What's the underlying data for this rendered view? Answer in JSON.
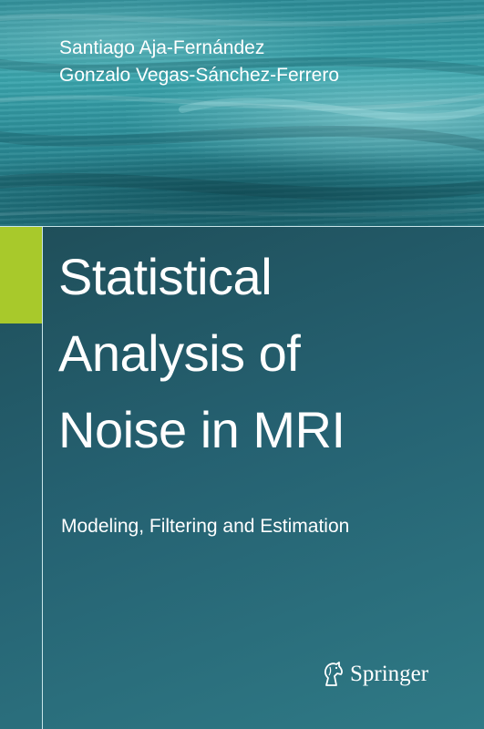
{
  "authors": [
    "Santiago Aja-Fernández",
    "Gonzalo Vegas-Sánchez-Ferrero"
  ],
  "title_lines": [
    "Statistical",
    "Analysis of",
    "Noise in MRI"
  ],
  "subtitle": "Modeling, Filtering and Estimation",
  "publisher": {
    "name": "Springer",
    "logo_icon": "horse-head-icon"
  },
  "colors": {
    "accent": "#a8c92b",
    "band_teal": "#3aa5ad",
    "panel_dark": "#1f4e59",
    "text": "#ffffff"
  }
}
